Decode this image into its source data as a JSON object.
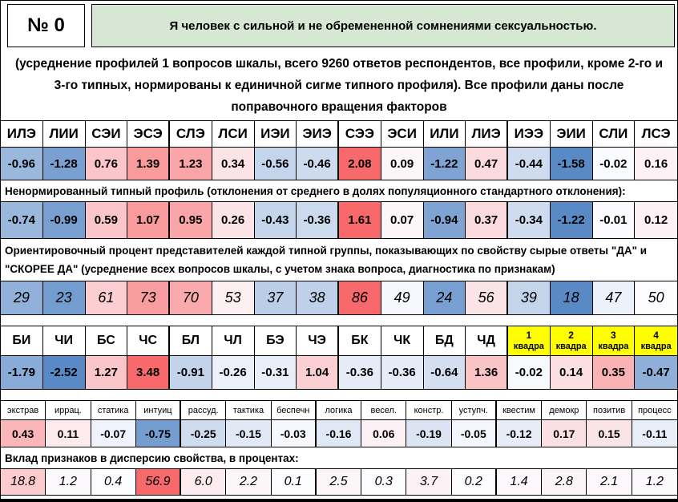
{
  "chart_data": {
    "type": "heatmap",
    "item_number": "№ 0",
    "statement": "Я человек с сильной и не обремененной сомнениями сексуальностью.",
    "description": "(усреднение профилей 1 вопросов шкалы, всего 9260 ответов респондентов, все профили, кроме 2-го и 3-го типных, нормированы к единичной сигме типного профиля). Все профили даны после поправочного вращения факторов",
    "colors": {
      "scale_negative": "#5A8AC6",
      "scale_mid": "#FCFCFF",
      "scale_positive": "#F8696B",
      "statement_bg": "#D6E8D4",
      "quadra_bg": "#FFFF00"
    },
    "type_profile": {
      "headers": [
        "ИЛЭ",
        "ЛИИ",
        "СЭИ",
        "ЭСЭ",
        "СЛЭ",
        "ЛСИ",
        "ИЭИ",
        "ЭИЭ",
        "СЭЭ",
        "ЭСИ",
        "ИЛИ",
        "ЛИЭ",
        "ИЭЭ",
        "ЭИИ",
        "СЛИ",
        "ЛСЭ"
      ],
      "normalized": {
        "values": [
          "-0.96",
          "-1.28",
          "0.76",
          "1.39",
          "1.23",
          "0.34",
          "-0.56",
          "-0.46",
          "2.08",
          "0.09",
          "-1.22",
          "0.47",
          "-0.44",
          "-1.58",
          "-0.02",
          "0.16"
        ],
        "scale": {
          "min": -1.58,
          "mid": 0,
          "max": 2.08
        }
      },
      "unnormalized_label": "Ненормированный типный профиль (отклонения от среднего в долях популяционного стандартного отклонения):",
      "unnormalized": {
        "values": [
          "-0.74",
          "-0.99",
          "0.59",
          "1.07",
          "0.95",
          "0.26",
          "-0.43",
          "-0.36",
          "1.61",
          "0.07",
          "-0.94",
          "0.37",
          "-0.34",
          "-1.22",
          "-0.01",
          "0.12"
        ],
        "scale": {
          "min": -1.22,
          "mid": 0,
          "max": 1.61
        }
      },
      "percent_label": "Ориентировочный процент представителей каждой типной группы, показывающих по свойству сырые ответы \"ДА\" и \"СКОРЕЕ ДА\" (усреднение всех вопросов шкалы, с учетом знака вопроса, диагностика по признакам)",
      "percent": {
        "values": [
          "29",
          "23",
          "61",
          "73",
          "70",
          "53",
          "37",
          "38",
          "86",
          "49",
          "24",
          "56",
          "39",
          "18",
          "47",
          "50"
        ],
        "scale": {
          "min": 18,
          "mid": 50,
          "max": 86
        }
      }
    },
    "aspect_profile": {
      "headers": [
        "БИ",
        "ЧИ",
        "БС",
        "ЧС",
        "БЛ",
        "ЧЛ",
        "БЭ",
        "ЧЭ",
        "БК",
        "ЧК",
        "БД",
        "ЧД"
      ],
      "values_row": {
        "values": [
          "-1.79",
          "-2.52",
          "1.27",
          "3.48",
          "-0.91",
          "-0.26",
          "-0.31",
          "1.04",
          "-0.36",
          "-0.36",
          "-0.64",
          "1.36"
        ],
        "scale": {
          "min": -2.52,
          "mid": 0,
          "max": 3.48
        }
      },
      "quadra_headers": [
        {
          "num": "1",
          "word": "квадра"
        },
        {
          "num": "2",
          "word": "квадра"
        },
        {
          "num": "3",
          "word": "квадра"
        },
        {
          "num": "4",
          "word": "квадра"
        }
      ],
      "quadra": {
        "values": [
          "-0.02",
          "0.14",
          "0.35",
          "-0.47"
        ],
        "scale": {
          "min": -0.7,
          "mid": 0,
          "max": 0.7
        }
      }
    },
    "reinin_profile": {
      "headers": [
        "экстрав",
        "иррац.",
        "статика",
        "интуиц",
        "рассуд.",
        "тактика",
        "беспечн",
        "логика",
        "весел.",
        "констр.",
        "уступч.",
        "квестим",
        "демокр",
        "позитив",
        "процесс"
      ],
      "values_row": {
        "values": [
          "0.43",
          "0.11",
          "-0.07",
          "-0.75",
          "-0.25",
          "-0.15",
          "-0.03",
          "-0.16",
          "0.06",
          "-0.19",
          "-0.05",
          "-0.12",
          "0.17",
          "0.15",
          "-0.11"
        ],
        "scale": {
          "min": -0.9,
          "mid": 0,
          "max": 0.9
        }
      },
      "dispersion_label": "Вклад признаков в дисперсию свойства, в процентах:",
      "dispersion": {
        "values": [
          "18.8",
          "1.2",
          "0.4",
          "56.9",
          "6.0",
          "2.2",
          "0.1",
          "2.5",
          "0.3",
          "3.7",
          "0.2",
          "1.4",
          "2.8",
          "2.1",
          "1.2"
        ],
        "scale": {
          "min": -56.9,
          "mid": 0,
          "max": 56.9
        }
      }
    }
  }
}
